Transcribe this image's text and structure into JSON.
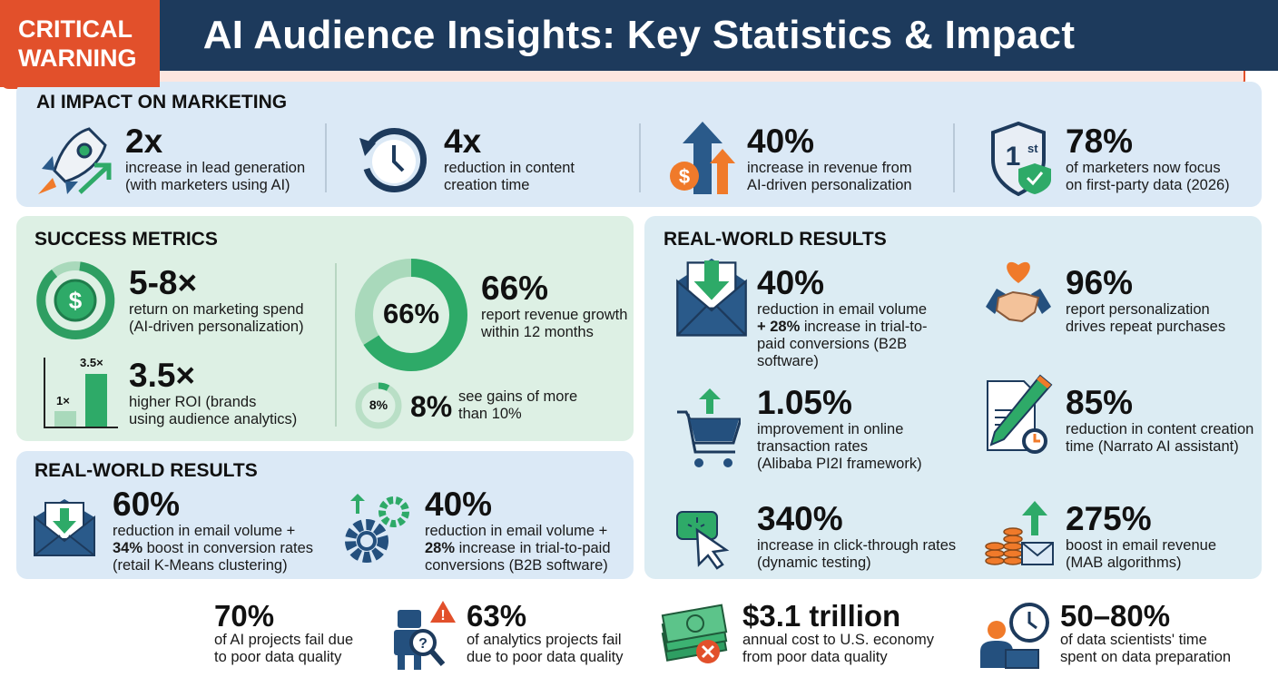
{
  "title": "AI Audience Insights: Key Statistics & Impact",
  "colors": {
    "navy": "#1d3a5c",
    "green": "#2eaa68",
    "orange": "#f07a2a",
    "red": "#e2502b"
  },
  "ai_impact": {
    "title": "AI IMPACT ON MARKETING",
    "items": [
      {
        "icon": "rocket-icon",
        "value": "2x",
        "line1": "increase in lead generation",
        "line2": "(with marketers using AI)"
      },
      {
        "icon": "clock-icon",
        "value": "4x",
        "line1": "reduction in content",
        "line2": "creation time"
      },
      {
        "icon": "revenue-arrows-icon",
        "value": "40%",
        "line1": "increase in revenue from",
        "line2": "AI-driven personalization"
      },
      {
        "icon": "first-shield-icon",
        "value": "78%",
        "line1": "of marketers now focus",
        "line2": "on first-party data (2026)"
      }
    ]
  },
  "success": {
    "title": "SUCCESS METRICS",
    "roi_spend": {
      "value": "5-8×",
      "line1": "return on marketing spend",
      "line2": "(AI-driven personalization)"
    },
    "roi_brands": {
      "value": "3.5×",
      "line1": "higher ROI (brands",
      "line2": "using audience analytics)",
      "bar_labels": [
        "1×",
        "3.5×"
      ],
      "bar_values": [
        1,
        3.5
      ]
    },
    "growth": {
      "value": "66%",
      "ring_label": "66%",
      "percent": 66,
      "line1": "report revenue growth",
      "line2": "within 12 months"
    },
    "gains": {
      "value": "8%",
      "ring_label": "8%",
      "percent": 8,
      "line1": "see gains of more",
      "line2": "than 10%"
    }
  },
  "rw_left": {
    "title": "REAL-WORLD RESULTS",
    "items": [
      {
        "icon": "email-download-icon",
        "value": "60%",
        "line1": "reduction in email volume +",
        "bold": "34%",
        "line2": " boost in conversion rates",
        "line3": "(retail K-Means clustering)"
      },
      {
        "icon": "gears-icon",
        "value": "40%",
        "line1": "reduction in email volume +",
        "bold": "28%",
        "line2": " increase in trial-to-paid",
        "line3": "conversions (B2B software)"
      }
    ]
  },
  "rw_right": {
    "title": "REAL-WORLD RESULTS",
    "items": [
      {
        "icon": "email-download-icon",
        "value": "40%",
        "line1": "reduction in email volume",
        "bold": "+ 28%",
        "line2": " increase in trial-to-",
        "line3": "paid conversions (B2B",
        "line4": "software)"
      },
      {
        "icon": "handshake-heart-icon",
        "value": "96%",
        "line1": "report personalization",
        "line2": "drives repeat purchases"
      },
      {
        "icon": "cart-icon",
        "value": "1.05%",
        "line1": "improvement in online",
        "line2": "transaction rates",
        "line3": "(Alibaba PI2I framework)"
      },
      {
        "icon": "document-pencil-icon",
        "value": "85%",
        "line1": "reduction in content creation",
        "line2": "time (Narrato AI assistant)"
      },
      {
        "icon": "click-cursor-icon",
        "value": "340%",
        "line1": "increase in click-through rates",
        "line2": "(dynamic testing)"
      },
      {
        "icon": "coins-email-icon",
        "value": "275%",
        "line1": "boost in email revenue",
        "line2": "(MAB algorithms)"
      }
    ]
  },
  "warning": {
    "label_line1": "CRITICAL",
    "label_line2": "WARNING",
    "items": [
      {
        "value": "70%",
        "line1": "of AI projects fail due",
        "line2": "to poor data quality"
      },
      {
        "icon": "robot-warning-icon",
        "value": "63%",
        "line1": "of analytics projects fail",
        "line2": "due to poor data quality"
      },
      {
        "icon": "money-x-icon",
        "value": "$3.1 trillion",
        "line1": "annual cost to U.S. economy",
        "line2": "from poor data quality"
      },
      {
        "icon": "person-clock-icon",
        "value": "50–80%",
        "line1": "of data scientists' time",
        "line2": "spent on data preparation"
      }
    ]
  }
}
